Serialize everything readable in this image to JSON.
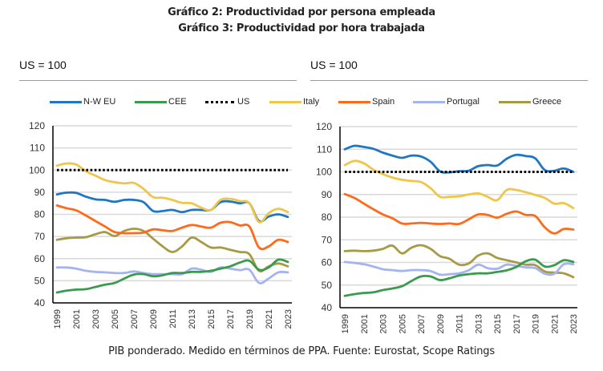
{
  "header": {
    "title_1": "Gráfico 2: Productividad por persona empleada",
    "title_2": "Gráfico 3: Productividad por hora trabajada"
  },
  "left_unit": "US = 100",
  "right_unit": "US = 100",
  "legend": [
    {
      "name": "N-W EU",
      "color": "#1f77c4",
      "style": "solid"
    },
    {
      "name": "CEE",
      "color": "#3a9a4e",
      "style": "solid"
    },
    {
      "name": "US",
      "color": "#000000",
      "style": "dotted"
    },
    {
      "name": "Italy",
      "color": "#efc54a",
      "style": "solid"
    },
    {
      "name": "Spain",
      "color": "#ff6a1a",
      "style": "solid"
    },
    {
      "name": "Portugal",
      "color": "#a3b4f0",
      "style": "solid"
    },
    {
      "name": "Greece",
      "color": "#a89a44",
      "style": "solid"
    }
  ],
  "footer": "PIB ponderado. Medido en términos de PPA. Fuente: Eurostat, Scope Ratings",
  "chart_data": [
    {
      "type": "line",
      "title": "Gráfico 2: Productividad por persona empleada",
      "ylabel": "US = 100",
      "xlabel": "",
      "ylim": [
        40,
        120
      ],
      "yticks": [
        40,
        50,
        60,
        70,
        80,
        90,
        100,
        110,
        120
      ],
      "xtick_labels": [
        "1999",
        "2001",
        "2003",
        "2005",
        "2007",
        "2009",
        "2011",
        "2013",
        "2015",
        "2017",
        "2019",
        "2021",
        "2023"
      ],
      "grid": true,
      "x": [
        1999,
        2000,
        2001,
        2002,
        2003,
        2004,
        2005,
        2006,
        2007,
        2008,
        2009,
        2010,
        2011,
        2012,
        2013,
        2014,
        2015,
        2016,
        2017,
        2018,
        2019,
        2020,
        2021,
        2022,
        2023
      ],
      "series": [
        {
          "name": "N-W EU",
          "values": [
            89,
            89.8,
            89.7,
            88,
            86.8,
            86.5,
            85.7,
            86.5,
            86.5,
            85.5,
            81.5,
            81.5,
            82,
            81,
            82,
            82,
            82,
            85.5,
            85.8,
            85,
            85,
            77,
            79,
            80,
            78.8
          ]
        },
        {
          "name": "CEE",
          "values": [
            44.7,
            45.5,
            46,
            46.2,
            47.2,
            48.2,
            49,
            51,
            52.8,
            53,
            52,
            52.5,
            53.5,
            53.5,
            54,
            54,
            54.5,
            55.5,
            56.5,
            58.2,
            59,
            55,
            56,
            59.5,
            58.5
          ]
        },
        {
          "name": "US",
          "values": [
            100,
            100,
            100,
            100,
            100,
            100,
            100,
            100,
            100,
            100,
            100,
            100,
            100,
            100,
            100,
            100,
            100,
            100,
            100,
            100,
            100,
            100,
            100,
            100,
            100
          ]
        },
        {
          "name": "Italy",
          "values": [
            102,
            103,
            102.5,
            99.5,
            97.5,
            95.5,
            94.5,
            94,
            94.2,
            91.5,
            87.8,
            87.5,
            86.5,
            85.2,
            85,
            83,
            82,
            86.5,
            87,
            86,
            85,
            76.5,
            80.5,
            82.5,
            81
          ]
        },
        {
          "name": "Spain",
          "values": [
            84,
            82.8,
            81.8,
            79.5,
            77,
            74.5,
            72,
            71.5,
            71.5,
            71.8,
            73.2,
            72.8,
            72.5,
            74,
            75.2,
            74.5,
            74,
            76.2,
            76.5,
            75,
            74.5,
            65,
            65.5,
            68.5,
            67.5
          ]
        },
        {
          "name": "Portugal",
          "values": [
            56,
            56,
            55.5,
            54.5,
            54,
            53.8,
            53.5,
            53.5,
            54.2,
            53.5,
            53,
            53,
            53,
            53,
            55.5,
            55,
            54,
            56,
            55.5,
            54.8,
            55,
            49,
            51,
            53.8,
            53.8
          ]
        },
        {
          "name": "Greece",
          "values": [
            68.5,
            69.2,
            69.5,
            69.7,
            71,
            72,
            70.2,
            72.5,
            73.5,
            72.5,
            69,
            65.5,
            63,
            65.5,
            69.5,
            67.5,
            65,
            65,
            64,
            63,
            62,
            54.5,
            56.5,
            57.8,
            56.5
          ]
        }
      ]
    },
    {
      "type": "line",
      "title": "Gráfico 3: Productividad por hora trabajada",
      "ylabel": "US = 100",
      "xlabel": "",
      "ylim": [
        40,
        120
      ],
      "yticks": [
        40,
        50,
        60,
        70,
        80,
        90,
        100,
        110,
        120
      ],
      "xtick_labels": [
        "1999",
        "2001",
        "2003",
        "2005",
        "2007",
        "2009",
        "2011",
        "2013",
        "2015",
        "2017",
        "2019",
        "2021",
        "2023"
      ],
      "grid": true,
      "x": [
        1999,
        2000,
        2001,
        2002,
        2003,
        2004,
        2005,
        2006,
        2007,
        2008,
        2009,
        2010,
        2011,
        2012,
        2013,
        2014,
        2015,
        2016,
        2017,
        2018,
        2019,
        2020,
        2021,
        2022,
        2023
      ],
      "series": [
        {
          "name": "N-W EU",
          "values": [
            110,
            111.5,
            111,
            110.2,
            108.5,
            107.2,
            106.2,
            107.2,
            106.8,
            104.5,
            100.2,
            99.8,
            100.3,
            100.5,
            102.5,
            103,
            102.8,
            105.8,
            107.5,
            107,
            106,
            100.8,
            100.5,
            101.5,
            100
          ]
        },
        {
          "name": "CEE",
          "values": [
            45.2,
            46,
            46.5,
            46.8,
            47.8,
            48.5,
            49.5,
            51.8,
            53.8,
            53.8,
            52.2,
            53,
            54.2,
            54.8,
            55.2,
            55.2,
            55.8,
            56.5,
            58,
            60.5,
            61.2,
            58.2,
            58.8,
            61,
            60.2
          ]
        },
        {
          "name": "US",
          "values": [
            100,
            100,
            100,
            100,
            100,
            100,
            100,
            100,
            100,
            100,
            100,
            100,
            100,
            100,
            100,
            100,
            100,
            100,
            100,
            100,
            100,
            100,
            100,
            100,
            100
          ]
        },
        {
          "name": "Italy",
          "values": [
            103,
            104.8,
            103.8,
            101,
            99,
            97.5,
            96.5,
            96,
            95.5,
            92.8,
            89,
            89,
            89.2,
            90,
            90.5,
            89,
            87.5,
            92,
            92,
            91,
            89.8,
            88.5,
            86,
            86.2,
            84
          ]
        },
        {
          "name": "Spain",
          "values": [
            90.2,
            88.5,
            86,
            83.5,
            81.2,
            79.5,
            77.2,
            77.2,
            77.5,
            77.2,
            77,
            77.2,
            77,
            79,
            81.2,
            81,
            79.8,
            81.5,
            82.5,
            81,
            80.5,
            75.5,
            72.8,
            74.8,
            74.5
          ]
        },
        {
          "name": "Portugal",
          "values": [
            60.2,
            59.8,
            59.2,
            58.2,
            57,
            56.6,
            56.2,
            56.6,
            56.6,
            56.2,
            54.6,
            54.8,
            55.2,
            56.5,
            59,
            57.5,
            57.2,
            59,
            58.5,
            57.8,
            57.5,
            55,
            55,
            59.2,
            59.2
          ]
        },
        {
          "name": "Greece",
          "values": [
            65,
            65.2,
            65,
            65.2,
            66,
            67.4,
            64,
            66.5,
            67.6,
            66,
            62.8,
            61.6,
            59,
            59.5,
            63,
            64,
            62,
            61,
            60,
            59,
            58.8,
            56,
            55.5,
            55.2,
            53.5
          ]
        }
      ]
    }
  ]
}
